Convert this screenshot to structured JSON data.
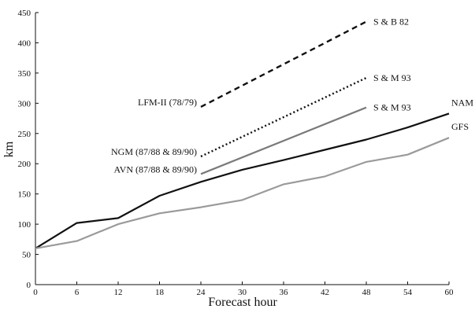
{
  "chart_data": {
    "type": "line",
    "xlabel": "Forecast hour",
    "ylabel": "km",
    "xlim": [
      0,
      60
    ],
    "ylim": [
      0,
      450
    ],
    "xticks": [
      0,
      6,
      12,
      18,
      24,
      30,
      36,
      42,
      48,
      54,
      60
    ],
    "yticks": [
      0,
      50,
      100,
      150,
      200,
      250,
      300,
      350,
      400,
      450
    ],
    "grid": false,
    "series": [
      {
        "name": "NAM",
        "color": "#111111",
        "style": "solid",
        "x": [
          0,
          6,
          12,
          18,
          24,
          30,
          36,
          42,
          48,
          54,
          60
        ],
        "y": [
          60,
          102,
          110,
          147,
          170,
          190,
          206,
          223,
          240,
          260,
          283
        ]
      },
      {
        "name": "GFS",
        "color": "#9a9a9a",
        "style": "solid",
        "x": [
          0,
          6,
          12,
          18,
          24,
          30,
          36,
          42,
          48,
          54,
          60
        ],
        "y": [
          60,
          72,
          100,
          118,
          128,
          140,
          166,
          179,
          203,
          215,
          243
        ]
      },
      {
        "name": "S & M 93",
        "color": "#7a7a7a",
        "style": "solid",
        "start_label": "AVN (87/88 & 89/90)",
        "x": [
          24,
          48
        ],
        "y": [
          183,
          293
        ]
      },
      {
        "name": "S & M 93",
        "color": "#111111",
        "style": "dotted",
        "start_label": "NGM (87/88 & 89/90)",
        "x": [
          24,
          48
        ],
        "y": [
          212,
          342
        ]
      },
      {
        "name": "S & B 82",
        "color": "#111111",
        "style": "dashed",
        "start_label": "LFM-II (78/79)",
        "x": [
          24,
          48
        ],
        "y": [
          294,
          435
        ]
      }
    ]
  }
}
